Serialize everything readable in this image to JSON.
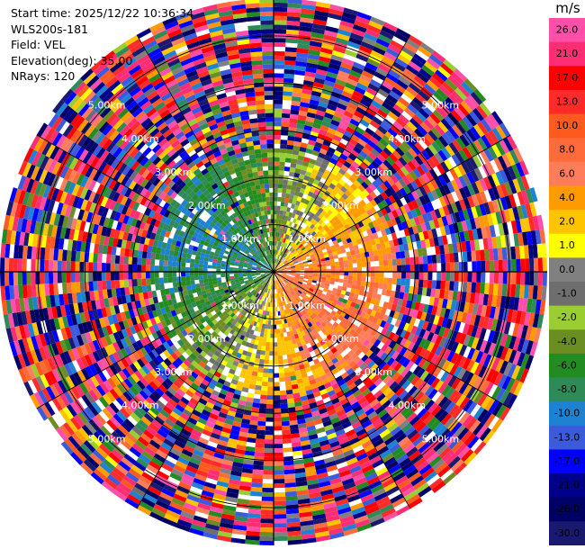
{
  "info": {
    "lines": [
      "Start time: 2025/12/22 10:36:34",
      "WLS200s-181",
      "Field: VEL",
      "Elevation(deg): 35.00",
      "NRays: 120"
    ]
  },
  "chart_data": {
    "type": "heatmap",
    "subtype": "polar-ppi",
    "field": "VEL",
    "units": "m/s",
    "n_rays": 120,
    "range_labels": [
      "1.00km",
      "2.00km",
      "3.00km",
      "4.00km",
      "5.00km"
    ],
    "max_range_km": 5.8,
    "colorbar": {
      "unit_label": "m/s",
      "ticks": [
        "26.0",
        "21.0",
        "17.0",
        "13.0",
        "10.0",
        "8.0",
        "6.0",
        "4.0",
        "2.0",
        "1.0",
        "0.0",
        "-1.0",
        "-2.0",
        "-4.0",
        "-6.0",
        "-8.0",
        "-10.0",
        "-13.0",
        "-17.0",
        "-21.0",
        "-26.0",
        "-30.0"
      ],
      "colors": [
        "#ff4fa8",
        "#ff2e74",
        "#ff0000",
        "#ff2a2a",
        "#ff5a1e",
        "#ff6b3a",
        "#ff7d5a",
        "#ff9b00",
        "#ffc400",
        "#ffff00",
        "#808080",
        "#6e6e6e",
        "#9acd32",
        "#6b8e23",
        "#228b22",
        "#2e8b57",
        "#1e82d2",
        "#3c5adc",
        "#0000ff",
        "#00008b",
        "#000064",
        "#191970"
      ]
    },
    "near_field_pattern": "approaching (blue/green) to the west and north-west, receding (yellow/orange/red) to the east; noise beyond ~2.5 km"
  }
}
